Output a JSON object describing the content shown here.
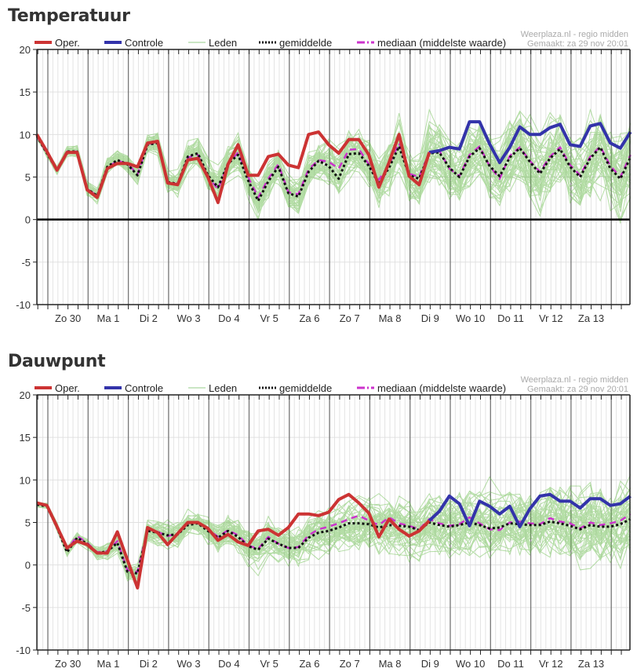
{
  "charts_meta": {
    "source": "Weerplaza.nl - regio midden",
    "made": "Gemaakt: za 29 nov 20:01",
    "legend": {
      "oper": "Oper.",
      "control": "Controle",
      "members": "Leden",
      "mean": "gemiddelde",
      "median": "mediaan (middelste waarde)"
    },
    "colors": {
      "oper": "#cc3333",
      "control": "#3333aa",
      "members": "#5cb83c",
      "mean": "#111111",
      "median": "#cc33cc"
    }
  },
  "chart_data": [
    {
      "type": "line",
      "title": "Temperatuur",
      "ylim": [
        -10,
        20
      ],
      "yticks": [
        "20",
        "15",
        "10",
        "5",
        "0",
        "-5",
        "-10"
      ],
      "x_step_hours": 6,
      "day_labels": [
        "Zo 30",
        "Ma 1",
        "Di 2",
        "Wo 3",
        "Do 4",
        "Vr 5",
        "Za 6",
        "Zo 7",
        "Ma 8",
        "Di 9",
        "Wo 10",
        "Do 11",
        "Vr 12",
        "Za 13"
      ],
      "series": [
        {
          "name": "Oper.",
          "values": [
            10,
            8,
            5.8,
            7.9,
            7.9,
            3.5,
            2.6,
            6,
            6.6,
            6.6,
            6.2,
            9,
            9.2,
            4.3,
            4.1,
            7,
            7.2,
            5,
            2,
            6.5,
            8.8,
            5.2,
            5.2,
            7.4,
            7.7,
            6.4,
            6.1,
            10,
            10.3,
            8.8,
            7.8,
            9.4,
            9.4,
            7.6,
            3.8,
            6.7,
            10,
            5.1,
            4.1,
            7.9
          ]
        },
        {
          "name": "Controle",
          "values": [
            null,
            null,
            null,
            null,
            null,
            null,
            null,
            null,
            null,
            null,
            null,
            null,
            null,
            null,
            null,
            null,
            null,
            null,
            null,
            null,
            null,
            null,
            null,
            null,
            null,
            null,
            null,
            null,
            null,
            null,
            null,
            null,
            null,
            null,
            null,
            null,
            null,
            null,
            null,
            7.9,
            8.1,
            8.5,
            8.3,
            11.5,
            11.5,
            8.9,
            6.7,
            8.5,
            10.9,
            10,
            10,
            10.8,
            11.2,
            8.8,
            8.6,
            11,
            11.3,
            9,
            8.4,
            10.3
          ]
        },
        {
          "name": "gemiddelde",
          "values": [
            9.8,
            7.8,
            5.8,
            8,
            8,
            3.6,
            2.8,
            6.2,
            7,
            6.5,
            5.2,
            8.8,
            9,
            4.4,
            4.2,
            7.4,
            7.8,
            5.2,
            3.8,
            6.6,
            7.6,
            4.6,
            2.2,
            4.5,
            6.2,
            3.1,
            2.7,
            5.6,
            6.9,
            6.3,
            4.8,
            7.7,
            7.8,
            6.3,
            4.2,
            6.1,
            8.6,
            5.2,
            4.8,
            7.8,
            7.9,
            6.1,
            5,
            7.4,
            8.4,
            6.3,
            5.1,
            7.3,
            8.4,
            6.8,
            5.4,
            7.2,
            8.3,
            6.2,
            5,
            7.2,
            8.5,
            6,
            4.8,
            7.3
          ]
        },
        {
          "name": "mediaan (middelste waarde)",
          "values": [
            9.8,
            7.8,
            5.9,
            8,
            8,
            3.6,
            2.8,
            6.1,
            6.9,
            6.6,
            5.3,
            8.9,
            9,
            4.3,
            4.2,
            7.3,
            7.6,
            5,
            3.6,
            6.5,
            7.9,
            5,
            2.6,
            4.8,
            6.5,
            3.2,
            3,
            5.9,
            7,
            6.8,
            6,
            8.2,
            8.3,
            6.5,
            4.7,
            6.4,
            9,
            5.4,
            5,
            7.9,
            8.1,
            6,
            5.1,
            7.6,
            8.6,
            6.3,
            4.8,
            7.5,
            8.5,
            6.9,
            5.6,
            7.4,
            8.5,
            6.4,
            5.2,
            7.4,
            8.6,
            6.3,
            5,
            7.6
          ]
        }
      ],
      "members_count": 50,
      "zero_line": true
    },
    {
      "type": "line",
      "title": "Dauwpunt",
      "ylim": [
        -10,
        20
      ],
      "yticks": [
        "20",
        "15",
        "10",
        "5",
        "0",
        "-5",
        "-10"
      ],
      "x_step_hours": 6,
      "day_labels": [
        "Zo 30",
        "Ma 1",
        "Di 2",
        "Wo 3",
        "Do 4",
        "Vr 5",
        "Za 6",
        "Zo 7",
        "Ma 8",
        "Di 9",
        "Wo 10",
        "Do 11",
        "Vr 12",
        "Za 13"
      ],
      "series": [
        {
          "name": "Oper.",
          "values": [
            7.3,
            7,
            4.5,
            2,
            2.8,
            2.4,
            1.4,
            1.4,
            3.9,
            0.6,
            -2.7,
            4.4,
            3.8,
            2.4,
            3.7,
            5,
            5,
            4.3,
            2.9,
            3.6,
            2.7,
            2.3,
            4,
            4.2,
            3.5,
            4.4,
            6,
            6,
            5.8,
            6.2,
            7.7,
            8.3,
            7.3,
            6.1,
            3.3,
            5.4,
            4.2,
            3.4,
            4,
            5.2
          ]
        },
        {
          "name": "Controle",
          "values": [
            null,
            null,
            null,
            null,
            null,
            null,
            null,
            null,
            null,
            null,
            null,
            null,
            null,
            null,
            null,
            null,
            null,
            null,
            null,
            null,
            null,
            null,
            null,
            null,
            null,
            null,
            null,
            null,
            null,
            null,
            null,
            null,
            null,
            null,
            null,
            null,
            null,
            null,
            null,
            5.2,
            6.3,
            8.1,
            7.2,
            4.6,
            7.5,
            6.9,
            6,
            6.9,
            4.5,
            6.6,
            8.1,
            8.3,
            7.5,
            7.5,
            6.7,
            7.8,
            7.8,
            7,
            7.2,
            8.1
          ]
        },
        {
          "name": "gemiddelde",
          "values": [
            7.1,
            6.9,
            4.4,
            1.5,
            3.2,
            2.5,
            1.4,
            1.6,
            2.6,
            -0.8,
            -1,
            4,
            3.8,
            3.5,
            3.6,
            4.7,
            4.9,
            4,
            3.2,
            4,
            3.3,
            2.2,
            1.8,
            3.1,
            2.5,
            2,
            2,
            3.2,
            3.8,
            4,
            4.4,
            4.9,
            4.9,
            4.8,
            4.4,
            4.7,
            4.6,
            4.5,
            4.1,
            5,
            4.7,
            4.5,
            4.7,
            5,
            4.7,
            4.3,
            4.4,
            4.9,
            4.8,
            4.7,
            4.7,
            5.1,
            4.9,
            4.6,
            4.2,
            4.7,
            4.5,
            4.5,
            4.8,
            5.4
          ]
        },
        {
          "name": "mediaan (middelste waarde)",
          "values": [
            7.2,
            7,
            4.5,
            1.8,
            3.4,
            2.6,
            1.5,
            1.6,
            2.8,
            -0.6,
            -0.8,
            4.2,
            3.9,
            3.4,
            3.7,
            4.9,
            5,
            4.2,
            3.3,
            4.1,
            3.5,
            2.3,
            1.9,
            3.3,
            2.5,
            2,
            2.1,
            3.5,
            4.2,
            4.5,
            4.9,
            5.4,
            5.8,
            5.2,
            4.7,
            5.6,
            4.9,
            4.6,
            4.2,
            5.4,
            4.9,
            4.6,
            4.8,
            5.6,
            4.9,
            4.2,
            4.1,
            5,
            5.1,
            4.9,
            4.8,
            5.5,
            5.1,
            4.9,
            4.3,
            5,
            4.7,
            4.9,
            5.2,
            6
          ]
        }
      ],
      "members_count": 50,
      "zero_line": false
    }
  ]
}
